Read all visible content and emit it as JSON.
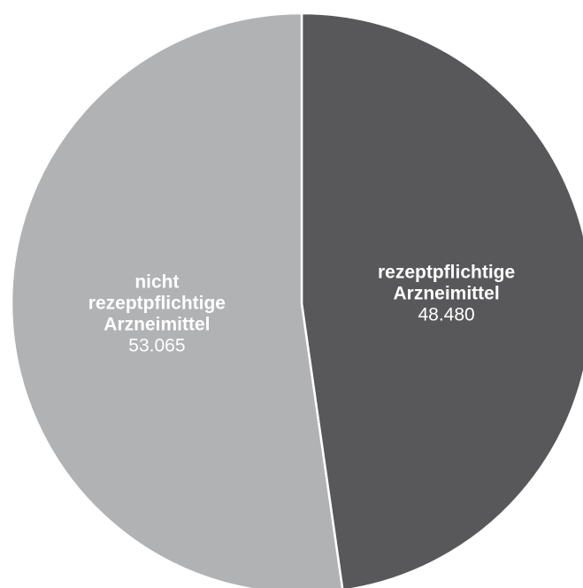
{
  "chart_data": {
    "type": "pie",
    "title": "",
    "slices": [
      {
        "label_lines": [
          "rezeptpflichtige",
          "Arzneimittel"
        ],
        "value": 48480,
        "value_label": "48.480",
        "color": "#58585a"
      },
      {
        "label_lines": [
          "nicht",
          "rezeptpflichtige",
          "Arzneimittel"
        ],
        "value": 53065,
        "value_label": "53.065",
        "color": "#b1b2b4"
      }
    ],
    "start_angle_deg": 0,
    "direction": "clockwise",
    "separator_color": "#ffffff",
    "label_color": "#ffffff"
  }
}
